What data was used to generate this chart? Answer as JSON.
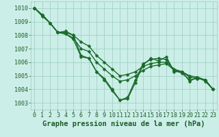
{
  "xlabel": "Graphe pression niveau de la mer (hPa)",
  "ylim": [
    1002.5,
    1010.5
  ],
  "xlim": [
    -0.5,
    23.5
  ],
  "yticks": [
    1003,
    1004,
    1005,
    1006,
    1007,
    1008,
    1009,
    1010
  ],
  "xticks": [
    0,
    1,
    2,
    3,
    4,
    5,
    6,
    7,
    8,
    9,
    10,
    11,
    12,
    13,
    14,
    15,
    16,
    17,
    18,
    19,
    20,
    21,
    22,
    23
  ],
  "background_color": "#cceee8",
  "grid_color": "#99ccbb",
  "line_color": "#1a6b2a",
  "markersize": 2.5,
  "linewidth": 1.0,
  "series": [
    [
      1010.0,
      1009.5,
      1008.9,
      1008.2,
      1008.1,
      1007.8,
      1007.0,
      1006.8,
      1006.0,
      1005.5,
      1005.0,
      1004.6,
      1004.7,
      1005.0,
      1005.4,
      1005.7,
      1005.8,
      1005.9,
      1005.4,
      1005.3,
      1004.9,
      1004.8,
      1004.7,
      1004.0
    ],
    [
      1010.0,
      1009.5,
      1008.9,
      1008.2,
      1008.2,
      1008.0,
      1007.5,
      1007.2,
      1006.5,
      1006.0,
      1005.5,
      1005.0,
      1005.1,
      1005.3,
      1005.7,
      1005.9,
      1006.0,
      1006.0,
      1005.5,
      1005.3,
      1005.0,
      1004.9,
      1004.7,
      1004.0
    ],
    [
      1010.0,
      1009.5,
      1008.9,
      1008.2,
      1008.3,
      1008.0,
      1006.5,
      1006.3,
      1005.3,
      1004.8,
      1004.0,
      1003.2,
      1003.3,
      1004.5,
      1005.8,
      1006.3,
      1006.1,
      1006.4,
      1005.3,
      1005.3,
      1004.6,
      1004.9,
      1004.6,
      1004.0
    ],
    [
      1010.0,
      1009.4,
      1008.9,
      1008.2,
      1008.1,
      1007.7,
      1006.4,
      1006.3,
      1005.3,
      1004.7,
      1003.9,
      1003.2,
      1003.4,
      1004.7,
      1005.9,
      1006.2,
      1006.3,
      1006.2,
      1005.4,
      1005.2,
      1004.7,
      1004.8,
      1004.7,
      1004.0
    ]
  ],
  "font_color": "#1a5c28",
  "tick_fontsize": 6,
  "label_fontsize": 7.5
}
